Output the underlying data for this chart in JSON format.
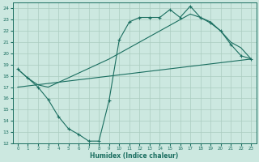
{
  "xlabel": "Humidex (Indice chaleur)",
  "xlim": [
    -0.5,
    23.5
  ],
  "ylim": [
    12,
    24.5
  ],
  "yticks": [
    12,
    13,
    14,
    15,
    16,
    17,
    18,
    19,
    20,
    21,
    22,
    23,
    24
  ],
  "xticks": [
    0,
    1,
    2,
    3,
    4,
    5,
    6,
    7,
    8,
    9,
    10,
    11,
    12,
    13,
    14,
    15,
    16,
    17,
    18,
    19,
    20,
    21,
    22,
    23
  ],
  "background_color": "#cce8e0",
  "grid_color": "#aaccbf",
  "line_color": "#1a6e60",
  "line1_x": [
    0,
    1,
    2,
    3,
    4,
    5,
    6,
    7,
    8,
    9,
    10,
    11,
    12,
    13,
    14,
    15,
    16,
    17,
    18,
    19,
    20,
    21,
    22,
    23
  ],
  "line1_y": [
    18.6,
    17.8,
    17.0,
    15.9,
    14.4,
    13.3,
    12.8,
    12.2,
    12.2,
    15.8,
    21.2,
    22.8,
    23.2,
    23.2,
    23.2,
    23.9,
    23.2,
    24.2,
    23.2,
    22.7,
    22.0,
    20.8,
    19.8,
    19.5
  ],
  "line2_x": [
    0,
    1,
    2,
    3,
    9,
    10,
    17,
    18,
    19,
    20,
    21,
    22,
    23
  ],
  "line2_y": [
    18.6,
    17.8,
    17.2,
    17.0,
    19.5,
    20.0,
    23.5,
    23.2,
    22.8,
    22.0,
    21.0,
    20.5,
    19.5
  ],
  "line3_x": [
    0,
    23
  ],
  "line3_y": [
    17.0,
    19.5
  ]
}
